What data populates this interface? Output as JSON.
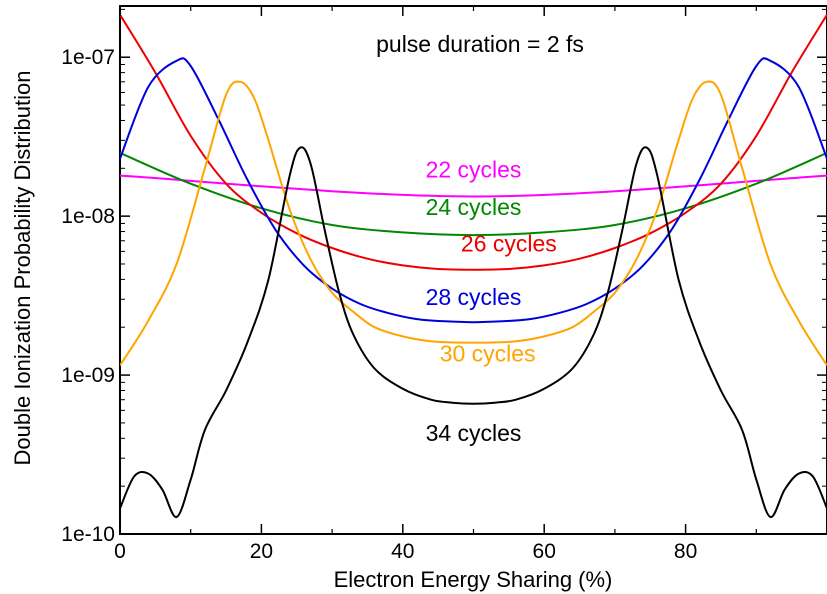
{
  "chart_data": {
    "type": "line",
    "title": "",
    "annotation_title": "pulse duration = 2 fs",
    "xlabel": "Electron Energy Sharing (%)",
    "ylabel": "Double Ionization Probability Distribution",
    "xlim": [
      0,
      100
    ],
    "ylim": [
      1e-10,
      2.1e-07
    ],
    "y_scale": "log",
    "grid": false,
    "x_ticks": [
      0,
      20,
      40,
      60,
      80
    ],
    "x_tick_labels": [
      "0",
      "20",
      "40",
      "60",
      "80"
    ],
    "y_ticks": [
      1e-10,
      1e-09,
      1e-08,
      1e-07
    ],
    "y_tick_labels": [
      "1e-10",
      "1e-09",
      "1e-08",
      "1e-07"
    ],
    "series": [
      {
        "name": "22 cycles",
        "color": "#ff00ff",
        "x": [
          0,
          50,
          100
        ],
        "y": [
          1.8e-08,
          1.33e-08,
          1.8e-08
        ],
        "label_at": [
          50,
          1.75e-08
        ]
      },
      {
        "name": "24 cycles",
        "color": "#008800",
        "x": [
          0,
          10,
          20,
          30,
          40,
          50,
          60,
          70,
          80,
          90,
          100
        ],
        "y": [
          2.5e-08,
          1.6e-08,
          1.12e-08,
          8.8e-09,
          7.9e-09,
          7.6e-09,
          7.9e-09,
          8.8e-09,
          1.12e-08,
          1.6e-08,
          2.5e-08
        ],
        "label_at": [
          50,
          1.02e-08
        ]
      },
      {
        "name": "26 cycles",
        "color": "#ee0000",
        "x": [
          0,
          5,
          10,
          15,
          20,
          25,
          30,
          35,
          40,
          45,
          50,
          55,
          60,
          65,
          70,
          75,
          80,
          85,
          90,
          95,
          100
        ],
        "y": [
          1.85e-07,
          8e-08,
          3.2e-08,
          1.6e-08,
          1.05e-08,
          7.8e-09,
          6.3e-09,
          5.4e-09,
          4.9e-09,
          4.65e-09,
          4.6e-09,
          4.65e-09,
          4.9e-09,
          5.4e-09,
          6.3e-09,
          7.8e-09,
          1.05e-08,
          1.6e-08,
          3.2e-08,
          8e-08,
          1.85e-07
        ],
        "label_at": [
          55,
          6e-09
        ]
      },
      {
        "name": "28 cycles",
        "color": "#0000dd",
        "x": [
          0,
          4,
          8,
          10,
          14,
          18,
          22,
          26,
          30,
          34,
          38,
          42,
          46,
          50,
          54,
          58,
          62,
          66,
          70,
          74,
          78,
          82,
          86,
          90,
          92,
          96,
          100
        ],
        "y": [
          2.3e-08,
          6.5e-08,
          9.5e-08,
          8.8e-08,
          4e-08,
          1.7e-08,
          8.2e-09,
          4.9e-09,
          3.5e-09,
          2.8e-09,
          2.45e-09,
          2.25e-09,
          2.18e-09,
          2.15e-09,
          2.18e-09,
          2.25e-09,
          2.45e-09,
          2.8e-09,
          3.5e-09,
          4.9e-09,
          8.2e-09,
          1.7e-08,
          4e-08,
          8.8e-08,
          9.5e-08,
          6.5e-08,
          2.3e-08
        ],
        "label_at": [
          50,
          2.75e-09
        ]
      },
      {
        "name": "30 cycles",
        "color": "#ffa500",
        "x": [
          0,
          4,
          8,
          12,
          15,
          17,
          19,
          21,
          24,
          27,
          30,
          33,
          36,
          40,
          44,
          48,
          50,
          52,
          56,
          60,
          64,
          67,
          70,
          73,
          76,
          79,
          81,
          83,
          85,
          88,
          92,
          96,
          100
        ],
        "y": [
          1.15e-09,
          2.2e-09,
          5e-09,
          2e-08,
          5.8e-08,
          7e-08,
          5.5e-08,
          3e-08,
          1.1e-08,
          5.3e-09,
          3.3e-09,
          2.5e-09,
          2e-09,
          1.75e-09,
          1.63e-09,
          1.6e-09,
          1.6e-09,
          1.6e-09,
          1.63e-09,
          1.75e-09,
          2e-09,
          2.5e-09,
          3.3e-09,
          5.3e-09,
          1.1e-08,
          3e-08,
          5.5e-08,
          7e-08,
          5.8e-08,
          2e-08,
          5e-09,
          2.2e-09,
          1.15e-09
        ],
        "label_at": [
          52,
          1.22e-09
        ]
      },
      {
        "name": "34 cycles",
        "color": "#000000",
        "x": [
          0,
          2,
          4,
          6,
          8,
          10,
          12,
          15,
          18,
          21,
          24,
          25.5,
          27,
          29,
          31,
          33,
          36,
          40,
          44,
          47,
          50,
          53,
          56,
          60,
          64,
          67,
          69,
          71,
          73,
          74.5,
          76,
          79,
          82,
          85,
          88,
          90,
          92,
          94,
          96,
          98,
          100
        ],
        "y": [
          1.45e-10,
          2.3e-10,
          2.4e-10,
          1.9e-10,
          1.28e-10,
          2.2e-10,
          4.5e-10,
          8e-10,
          1.6e-09,
          4e-09,
          1.8e-08,
          2.7e-08,
          2.1e-08,
          8e-09,
          3.3e-09,
          1.8e-09,
          1.1e-09,
          8.2e-10,
          7e-10,
          6.7e-10,
          6.6e-10,
          6.7e-10,
          7e-10,
          8.2e-10,
          1.1e-09,
          1.8e-09,
          3.3e-09,
          8e-09,
          2.1e-08,
          2.7e-08,
          1.8e-08,
          4e-09,
          1.6e-09,
          8e-10,
          4.5e-10,
          2.2e-10,
          1.28e-10,
          1.9e-10,
          2.4e-10,
          2.3e-10,
          1.45e-10
        ],
        "label_at": [
          50,
          3.85e-10
        ]
      }
    ]
  }
}
